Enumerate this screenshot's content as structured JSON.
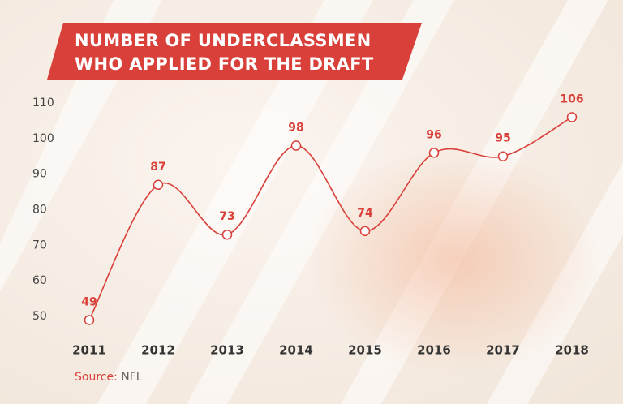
{
  "chart_data": {
    "type": "line",
    "title": "NUMBER OF UNDERCLASSMEN WHO APPLIED FOR THE DRAFT",
    "categories": [
      "2011",
      "2012",
      "2013",
      "2014",
      "2015",
      "2016",
      "2017",
      "2018"
    ],
    "values": [
      49,
      87,
      73,
      98,
      74,
      96,
      95,
      106
    ],
    "color": "#d9403a",
    "ylim": [
      45,
      115
    ],
    "yticks": [
      50,
      60,
      70,
      80,
      90,
      100,
      110
    ],
    "source_label": "Source:",
    "source": "NFL"
  }
}
